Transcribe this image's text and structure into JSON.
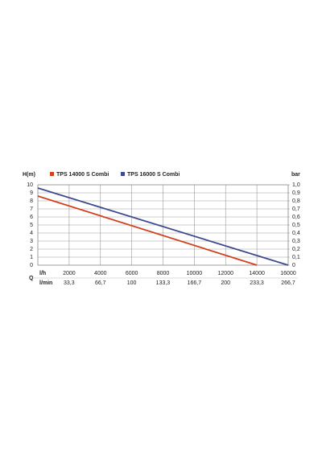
{
  "chart_data": {
    "type": "line",
    "y_label": "H(m)",
    "y2_label": "bar",
    "x_label": "l/h",
    "x2_label": "l/min",
    "x_axis_symbol": "Q",
    "x": [
      0,
      14000,
      16000
    ],
    "series": [
      {
        "name": "TPS 14000 S Combi",
        "color": "#d2401e",
        "x": [
          0,
          14000
        ],
        "values": [
          8.6,
          0
        ]
      },
      {
        "name": "TPS 16000 S Combi",
        "color": "#3d4a8e",
        "x": [
          0,
          16000
        ],
        "values": [
          9.6,
          0
        ]
      }
    ],
    "xlim": [
      0,
      16000
    ],
    "xticks": [
      2000,
      4000,
      6000,
      8000,
      10000,
      12000,
      14000,
      16000
    ],
    "x2lim": [
      0,
      266.7
    ],
    "x2ticks": [
      {
        "value": 33.3,
        "label": "33,3"
      },
      {
        "value": 66.7,
        "label": "66,7"
      },
      100,
      {
        "value": 133.3,
        "label": "133,3"
      },
      {
        "value": 166.7,
        "label": "166,7"
      },
      200,
      {
        "value": 233.3,
        "label": "233,3"
      },
      {
        "value": 266.7,
        "label": "266,7"
      }
    ],
    "ylim": [
      0,
      10
    ],
    "yticks": [
      0,
      1,
      2,
      3,
      4,
      5,
      6,
      7,
      8,
      9,
      10
    ],
    "y2lim": [
      0,
      1
    ],
    "y2ticks": [
      0,
      {
        "value": 0.1,
        "label": "0,1"
      },
      {
        "value": 0.2,
        "label": "0,2"
      },
      {
        "value": 0.3,
        "label": "0,3"
      },
      {
        "value": 0.4,
        "label": "0,4"
      },
      {
        "value": 0.5,
        "label": "0,5"
      },
      {
        "value": 0.6,
        "label": "0,6"
      },
      {
        "value": 0.7,
        "label": "0,7"
      },
      {
        "value": 0.8,
        "label": "0,8"
      },
      {
        "value": 0.9,
        "label": "0,9"
      },
      {
        "value": 1,
        "label": "1,0"
      }
    ],
    "grid": true
  }
}
